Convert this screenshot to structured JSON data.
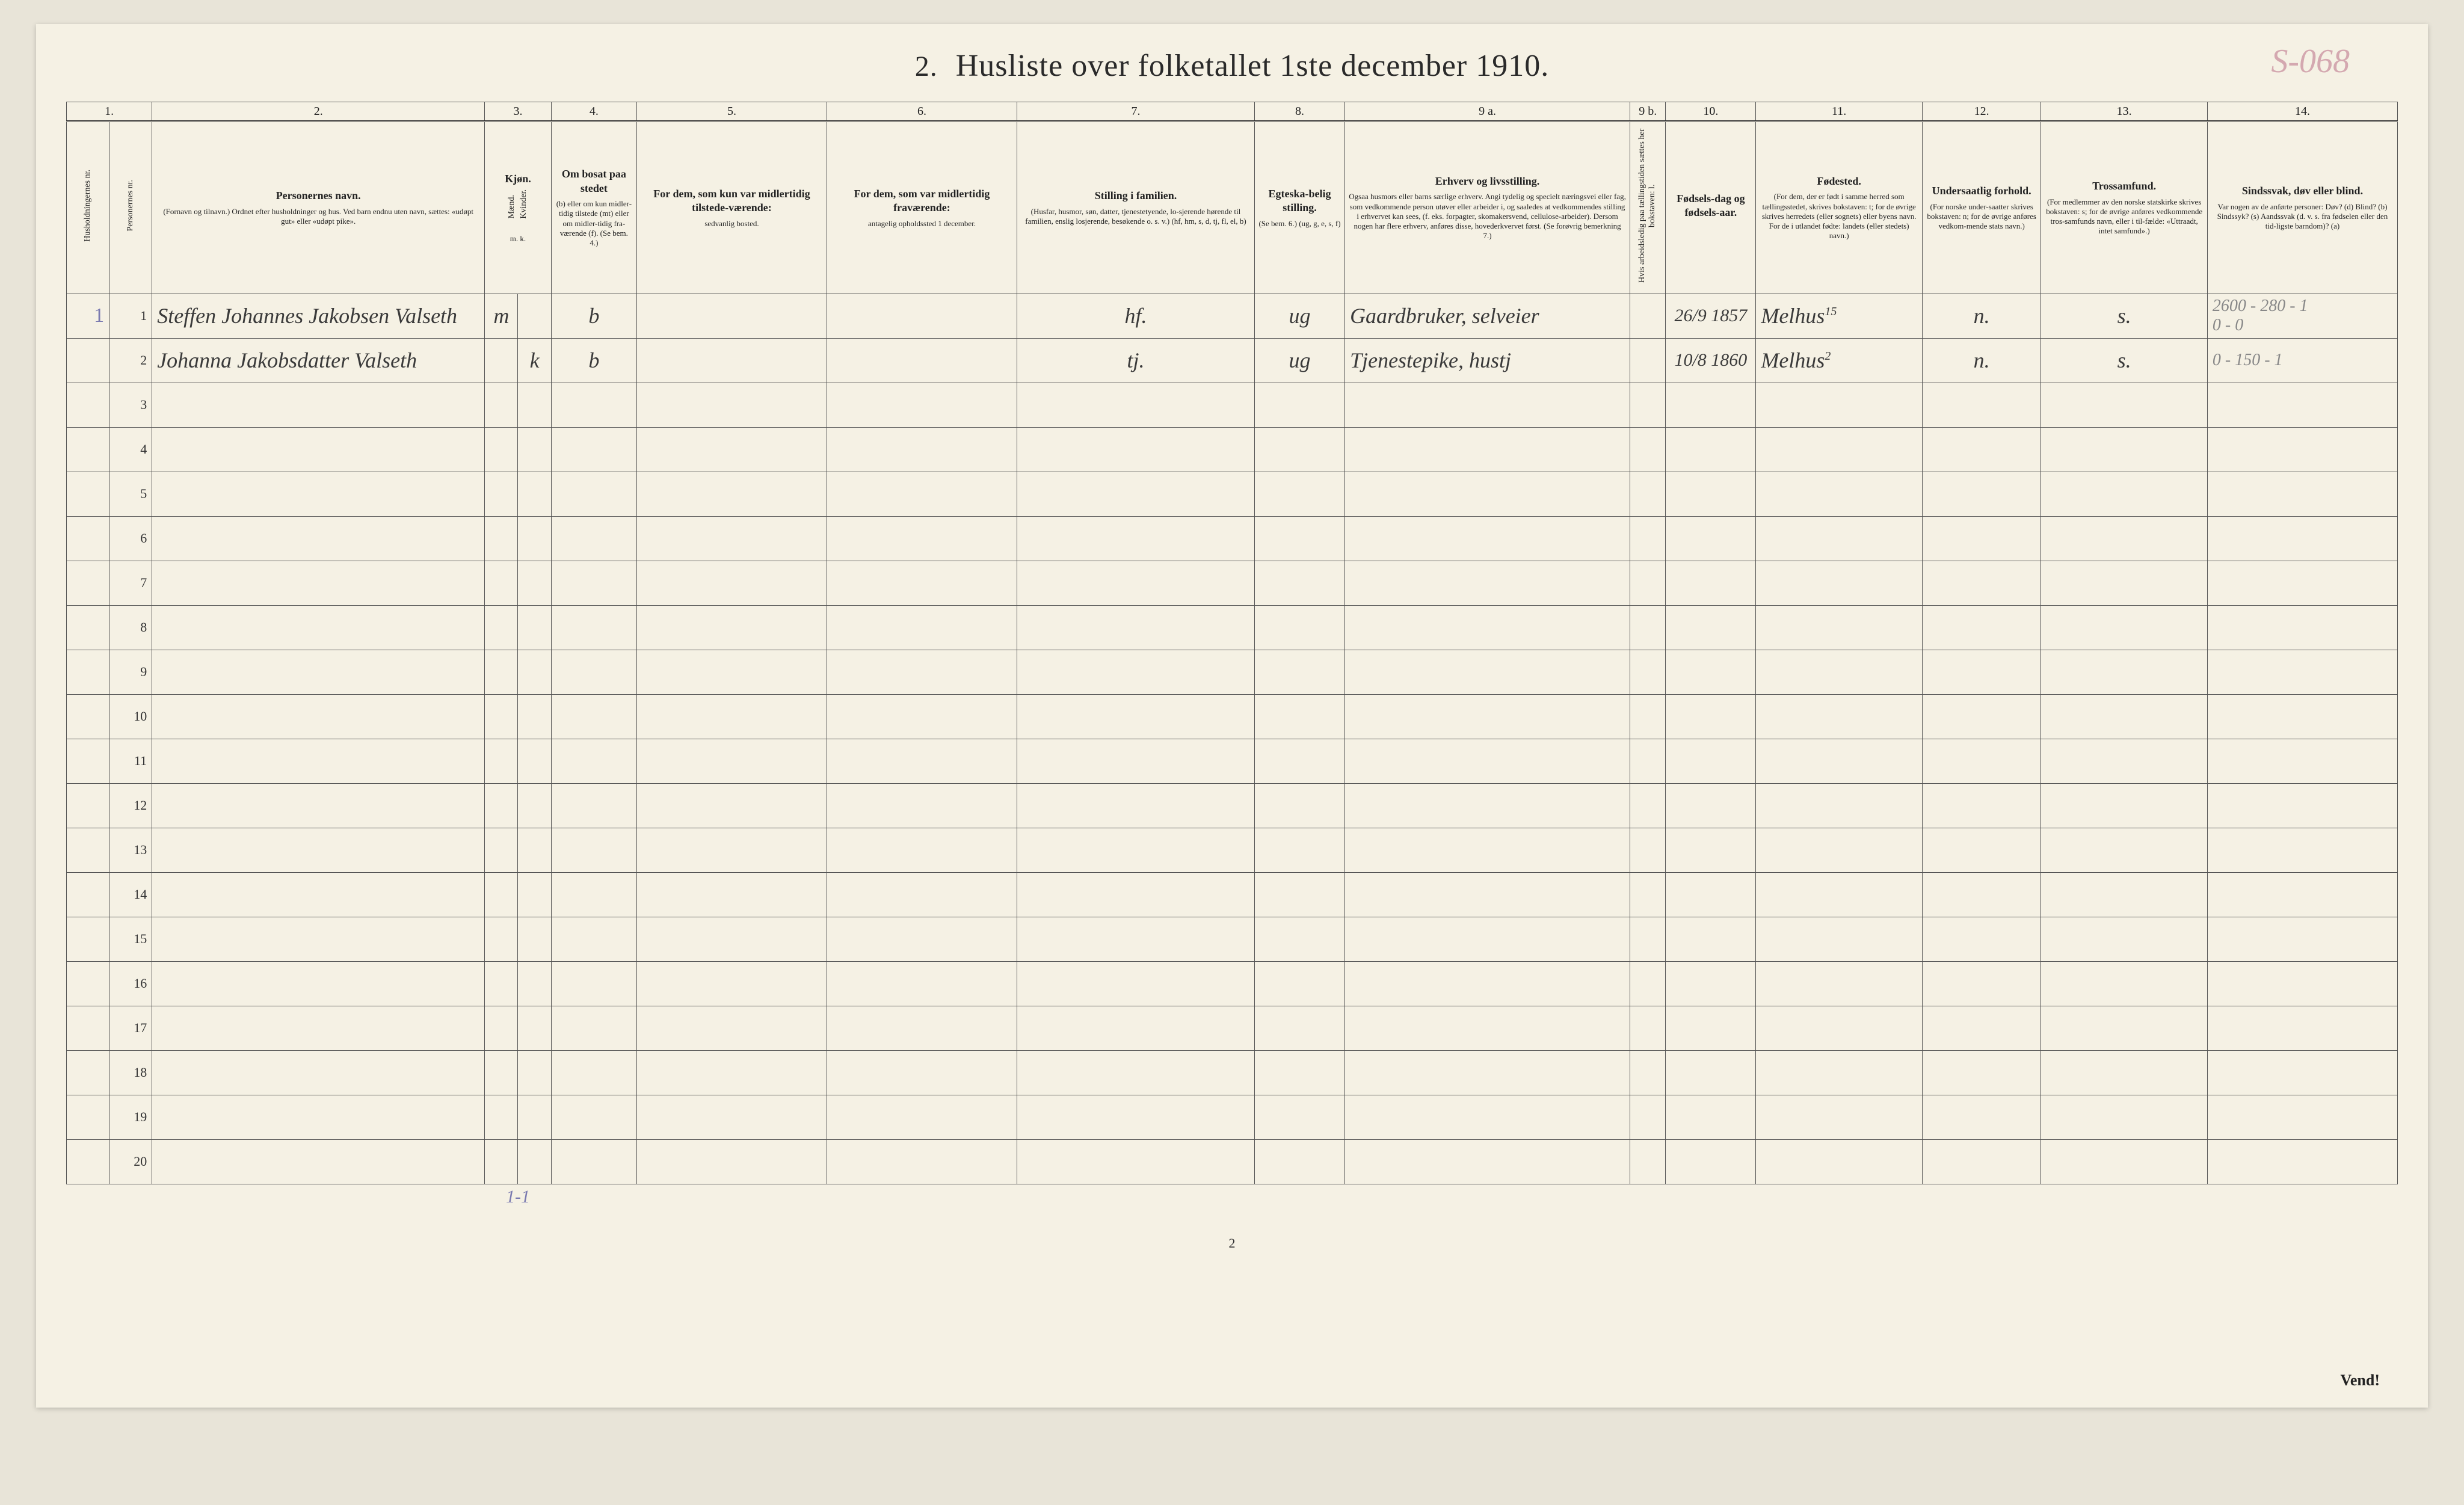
{
  "title_number": "2.",
  "title": "Husliste over folketallet 1ste december 1910.",
  "corner_annotation": "S-068",
  "footer_page_number": "2",
  "vend_text": "Vend!",
  "bottom_tally": "1-1",
  "column_numbers": [
    "1.",
    "2.",
    "3.",
    "4.",
    "5.",
    "6.",
    "7.",
    "8.",
    "9 a.",
    "9 b.",
    "10.",
    "11.",
    "12.",
    "13.",
    "14."
  ],
  "headers": {
    "c1a": "Husholdningernes nr.",
    "c1b": "Personernes nr.",
    "c2_main": "Personernes navn.",
    "c2_sub": "(Fornavn og tilnavn.)\nOrdnet efter husholdninger og hus.\nVed barn endnu uten navn, sættes: «udøpt gut» eller «udøpt pike».",
    "c3_main": "Kjøn.",
    "c3_m": "Mænd.",
    "c3_k": "Kvinder.",
    "c3_mk": "m.  k.",
    "c4_main": "Om bosat paa stedet",
    "c4_sub": "(b) eller om kun midler-tidig tilstede (mt) eller om midler-tidig fra-værende (f). (Se bem. 4.)",
    "c5_main": "For dem, som kun var midlertidig tilstede-værende:",
    "c5_sub": "sedvanlig bosted.",
    "c6_main": "For dem, som var midlertidig fraværende:",
    "c6_sub": "antagelig opholdssted 1 december.",
    "c7_main": "Stilling i familien.",
    "c7_sub": "(Husfar, husmor, søn, datter, tjenestetyende, lo-sjerende hørende til familien, enslig losjerende, besøkende o. s. v.)\n(hf, hm, s, d, tj, fl, el, b)",
    "c8_main": "Egteska-belig stilling.",
    "c8_sub": "(Se bem. 6.)\n(ug, g, e, s, f)",
    "c9a_main": "Erhverv og livsstilling.",
    "c9a_sub": "Ogsaa husmors eller barns særlige erhverv. Angi tydelig og specielt næringsvei eller fag, som vedkommende person utøver eller arbeider i, og saaledes at vedkommendes stilling i erhvervet kan sees, (f. eks. forpagter, skomakersvend, cellulose-arbeider). Dersom nogen har flere erhverv, anføres disse, hovederkvervet først. (Se forøvrig bemerkning 7.)",
    "c9b": "Hvis arbeidsledig paa tællingstiden sættes her bokstaven: l.",
    "c10_main": "Fødsels-dag og fødsels-aar.",
    "c11_main": "Fødested.",
    "c11_sub": "(For dem, der er født i samme herred som tællingsstedet, skrives bokstaven: t; for de øvrige skrives herredets (eller sognets) eller byens navn. For de i utlandet fødte: landets (eller stedets) navn.)",
    "c12_main": "Undersaatlig forhold.",
    "c12_sub": "(For norske under-saatter skrives bokstaven: n; for de øvrige anføres vedkom-mende stats navn.)",
    "c13_main": "Trossamfund.",
    "c13_sub": "(For medlemmer av den norske statskirke skrives bokstaven: s; for de øvrige anføres vedkommende tros-samfunds navn, eller i til-fælde: «Uttraadt, intet samfund».)",
    "c14_main": "Sindssvak, døv eller blind.",
    "c14_sub": "Var nogen av de anførte personer:\nDøv? (d)\nBlind? (b)\nSindssyk? (s)\nAandssvak (d. v. s. fra fødselen eller den tid-ligste barndom)? (a)"
  },
  "rows": [
    {
      "hh": "1",
      "pn": "1",
      "name": "Steffen Johannes Jakobsen Valseth",
      "sex_m": "m",
      "sex_k": "",
      "bosat": "b",
      "c5": "",
      "c6": "",
      "c7": "hf.",
      "c8": "ug",
      "c9a": "Gaardbruker, selveier",
      "c9b": "",
      "c10": "26/9 1857",
      "c11": "Melhus",
      "c11_sup": "15",
      "c12": "n.",
      "c13": "s.",
      "c14": "2600 - 280 - 1\n0 - 0"
    },
    {
      "hh": "",
      "pn": "2",
      "name": "Johanna Jakobsdatter Valseth",
      "sex_m": "",
      "sex_k": "k",
      "bosat": "b",
      "c5": "",
      "c6": "",
      "c7": "tj.",
      "c8": "ug",
      "c9a": "Tjenestepike, hustj",
      "c9b": "",
      "c10": "10/8 1860",
      "c11": "Melhus",
      "c11_sup": "2",
      "c12": "n.",
      "c13": "s.",
      "c14": "0 - 150 - 1"
    }
  ],
  "empty_row_count": 18,
  "colors": {
    "paper": "#f5f1e4",
    "ink": "#2a2a2a",
    "rule": "#555",
    "pencil": "#888",
    "pink_annotation": "#d4a8b0",
    "blue_pencil": "#7a7ab0"
  }
}
